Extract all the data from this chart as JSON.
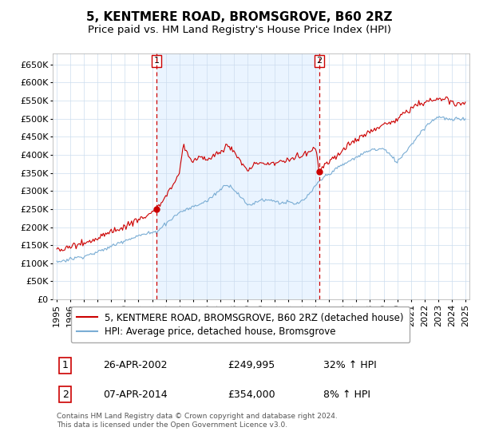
{
  "title": "5, KENTMERE ROAD, BROMSGROVE, B60 2RZ",
  "subtitle": "Price paid vs. HM Land Registry's House Price Index (HPI)",
  "ylim": [
    0,
    680000
  ],
  "yticks": [
    0,
    50000,
    100000,
    150000,
    200000,
    250000,
    300000,
    350000,
    400000,
    450000,
    500000,
    550000,
    600000,
    650000
  ],
  "ytick_labels": [
    "£0",
    "£50K",
    "£100K",
    "£150K",
    "£200K",
    "£250K",
    "£300K",
    "£350K",
    "£400K",
    "£450K",
    "£500K",
    "£550K",
    "£600K",
    "£650K"
  ],
  "xlim_start": 1994.7,
  "xlim_end": 2025.3,
  "xticks": [
    1995,
    1996,
    1997,
    1998,
    1999,
    2000,
    2001,
    2002,
    2003,
    2004,
    2005,
    2006,
    2007,
    2008,
    2009,
    2010,
    2011,
    2012,
    2013,
    2014,
    2015,
    2016,
    2017,
    2018,
    2019,
    2020,
    2021,
    2022,
    2023,
    2024,
    2025
  ],
  "line1_color": "#cc0000",
  "line2_color": "#7aadd4",
  "line1_label": "5, KENTMERE ROAD, BROMSGROVE, B60 2RZ (detached house)",
  "line2_label": "HPI: Average price, detached house, Bromsgrove",
  "vline1_x": 2002.32,
  "vline2_x": 2014.27,
  "vline_color": "#cc0000",
  "fill_color": "#ddeeff",
  "marker1_x": 2002.32,
  "marker1_y": 249995,
  "marker2_x": 2014.27,
  "marker2_y": 354000,
  "sale1_label": "1",
  "sale2_label": "2",
  "sale1_date": "26-APR-2002",
  "sale1_price": "£249,995",
  "sale1_hpi": "32% ↑ HPI",
  "sale2_date": "07-APR-2014",
  "sale2_price": "£354,000",
  "sale2_hpi": "8% ↑ HPI",
  "footer": "Contains HM Land Registry data © Crown copyright and database right 2024.\nThis data is licensed under the Open Government Licence v3.0.",
  "bg_color": "#ffffff",
  "grid_color": "#ccddee",
  "title_fontsize": 11,
  "subtitle_fontsize": 10,
  "tick_fontsize": 8,
  "legend_fontsize": 8.5
}
